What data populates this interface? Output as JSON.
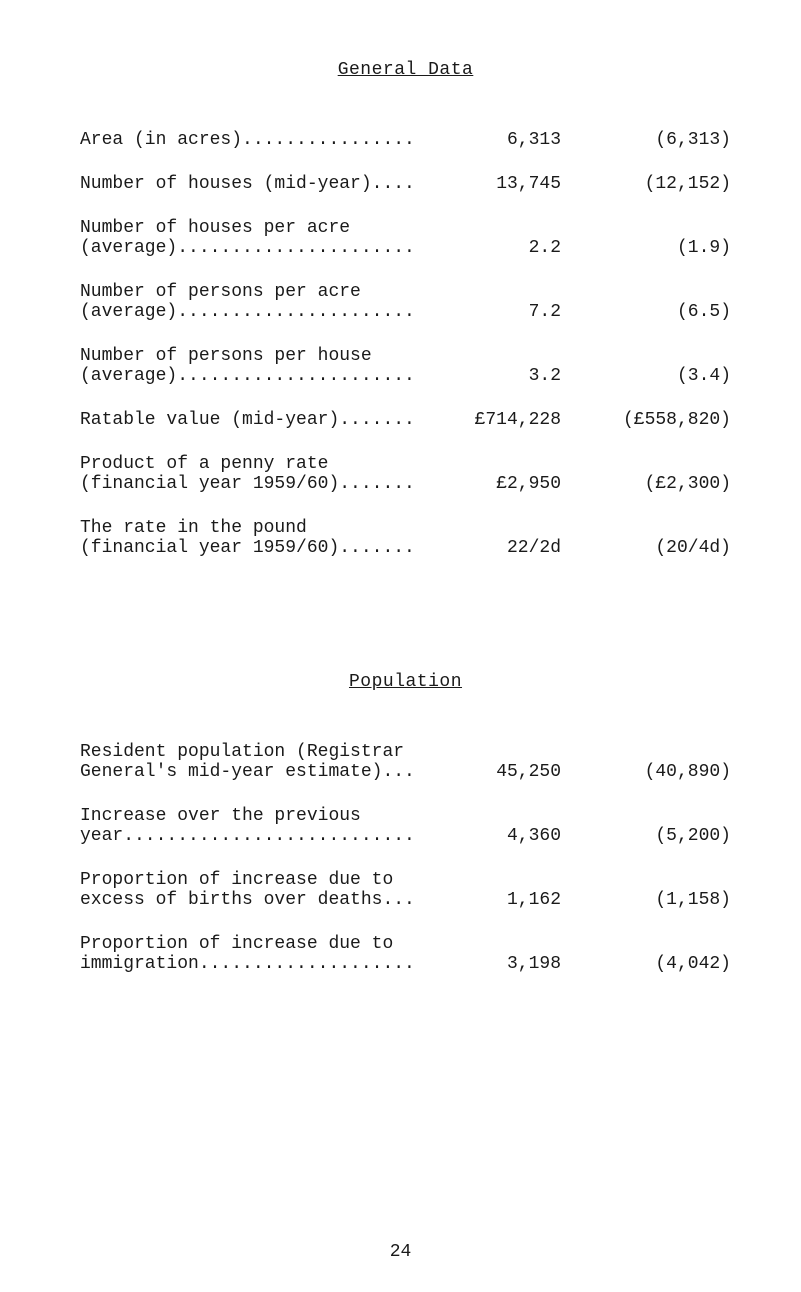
{
  "sections": {
    "general": {
      "title": "General Data",
      "rows": [
        {
          "label1": "Area (in acres)................",
          "val1": "6,313",
          "val2": "(6,313)"
        },
        {
          "label1": "Number of houses (mid-year)....",
          "val1": "13,745",
          "val2": "(12,152)"
        },
        {
          "label1": "Number of houses per acre",
          "label2": "(average)......................",
          "val1": "2.2",
          "val2": "(1.9)"
        },
        {
          "label1": "Number of persons per acre",
          "label2": "(average)......................",
          "val1": "7.2",
          "val2": "(6.5)"
        },
        {
          "label1": "Number of persons per house",
          "label2": "(average)......................",
          "val1": "3.2",
          "val2": "(3.4)"
        },
        {
          "label1": "Ratable value (mid-year).......",
          "val1": "£714,228",
          "val2": "(£558,820)"
        },
        {
          "label1": "Product of a penny rate",
          "label2": "(financial year 1959/60).......",
          "val1": "£2,950",
          "val2": "(£2,300)"
        },
        {
          "label1": "The rate in the pound",
          "label2": "(financial year 1959/60).......",
          "val1": "22/2d",
          "val2": "(20/4d)"
        }
      ]
    },
    "population": {
      "title": "Population",
      "rows": [
        {
          "label1": "Resident population (Registrar",
          "label2": "General's mid-year estimate)...",
          "val1": "45,250",
          "val2": "(40,890)"
        },
        {
          "label1": "Increase over the previous",
          "label2": "year...........................",
          "val1": "4,360",
          "val2": "(5,200)"
        },
        {
          "label1": "Proportion of increase due to",
          "label2": "excess of births over deaths...",
          "val1": "1,162",
          "val2": "(1,158)"
        },
        {
          "label1": "Proportion of increase due to",
          "label2": "immigration....................",
          "val1": "3,198",
          "val2": "(4,042)"
        }
      ]
    }
  },
  "page_number": "24"
}
